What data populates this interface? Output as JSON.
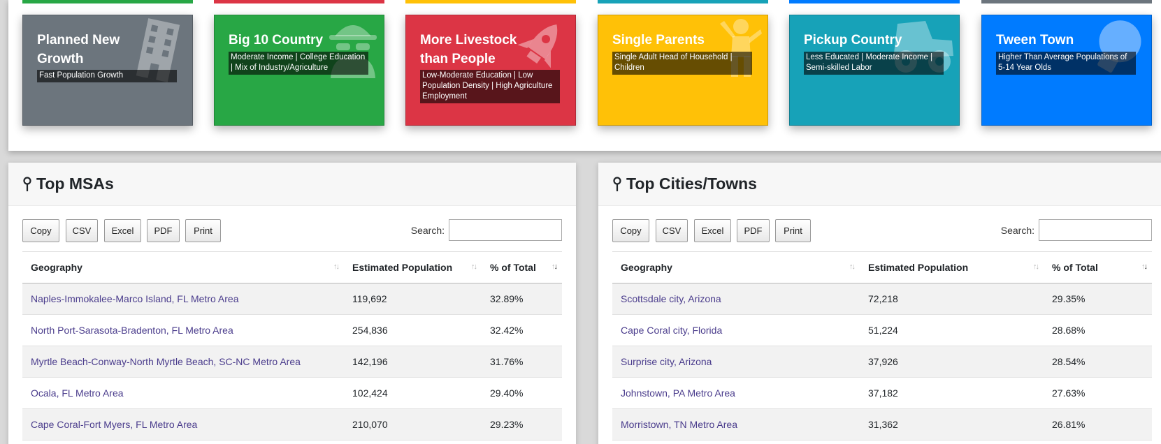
{
  "cards": [
    {
      "title": "Planned New Growth",
      "desc": "Fast Population Growth",
      "color": "#6c757d",
      "icon": "building-icon"
    },
    {
      "title": "Big 10 Country",
      "desc": "Moderate Income | College Education | Mix of Industry/Agriculture",
      "color": "#28a745",
      "icon": "spy-icon"
    },
    {
      "title": "More Livestock than People",
      "desc": "Low-Moderate Education | Low Population Density | High Agriculture Employment",
      "color": "#dc3545",
      "icon": "rocket-icon"
    },
    {
      "title": "Single Parents",
      "desc": "Single Adult Head of Household | Children",
      "color": "#ffc107",
      "icon": "child-icon"
    },
    {
      "title": "Pickup Country",
      "desc": "Less Educated | Moderate Income | Semi-skilled Labor",
      "color": "#17a2b8",
      "icon": "truck-icon"
    },
    {
      "title": "Tween Town",
      "desc": "Higher Than Average Populations of 5-14 Year Olds",
      "color": "#007bff",
      "icon": "lightbulb-icon"
    }
  ],
  "msa": {
    "title": "Top MSAs",
    "buttons": [
      "Copy",
      "CSV",
      "Excel",
      "PDF",
      "Print"
    ],
    "search_label": "Search:",
    "columns": [
      "Geography",
      "Estimated Population",
      "% of Total"
    ],
    "rows": [
      [
        "Naples-Immokalee-Marco Island, FL Metro Area",
        "119,692",
        "32.89%"
      ],
      [
        "North Port-Sarasota-Bradenton, FL Metro Area",
        "254,836",
        "32.42%"
      ],
      [
        "Myrtle Beach-Conway-North Myrtle Beach, SC-NC Metro Area",
        "142,196",
        "31.76%"
      ],
      [
        "Ocala, FL Metro Area",
        "102,424",
        "29.40%"
      ],
      [
        "Cape Coral-Fort Myers, FL Metro Area",
        "210,070",
        "29.23%"
      ]
    ]
  },
  "cities": {
    "title": "Top Cities/Towns",
    "buttons": [
      "Copy",
      "CSV",
      "Excel",
      "PDF",
      "Print"
    ],
    "search_label": "Search:",
    "columns": [
      "Geography",
      "Estimated Population",
      "% of Total"
    ],
    "rows": [
      [
        "Scottsdale city, Arizona",
        "72,218",
        "29.35%"
      ],
      [
        "Cape Coral city, Florida",
        "51,224",
        "28.68%"
      ],
      [
        "Surprise city, Arizona",
        "37,926",
        "28.54%"
      ],
      [
        "Johnstown, PA Metro Area",
        "37,182",
        "27.63%"
      ],
      [
        "Morristown, TN Metro Area",
        "31,362",
        "26.81%"
      ]
    ]
  }
}
